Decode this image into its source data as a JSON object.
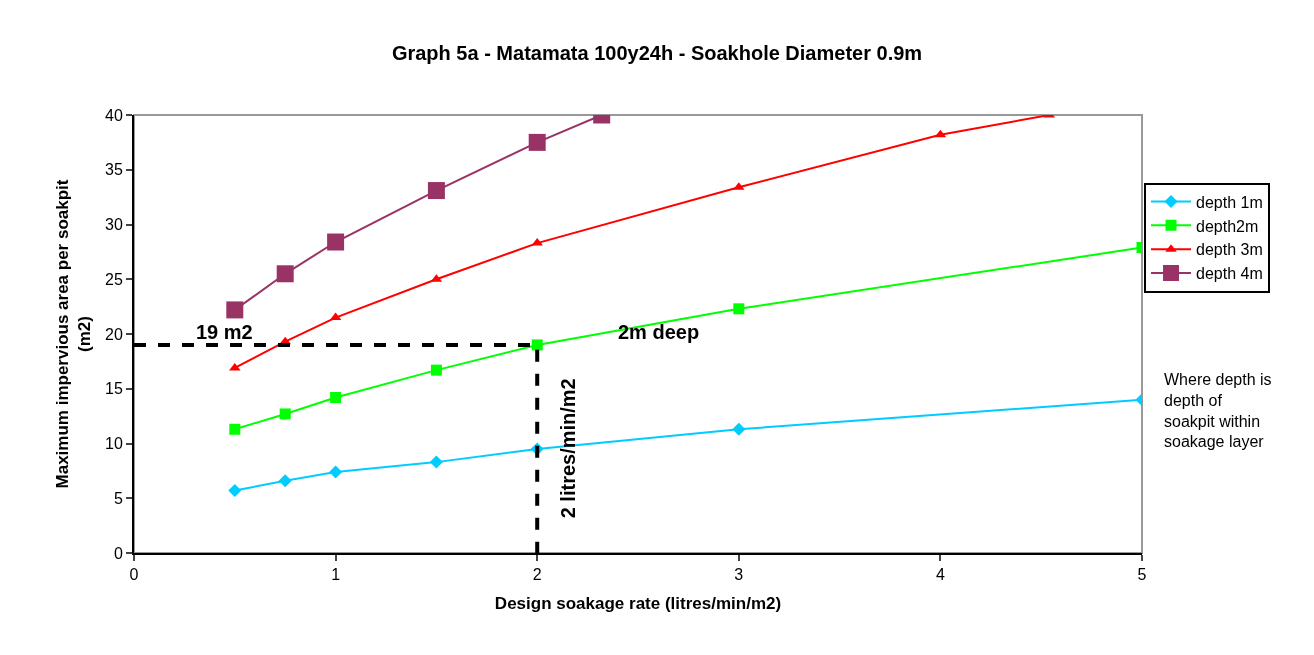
{
  "chart_data": {
    "type": "line",
    "title": "Graph 5a - Matamata 100y24h - Soakhole Diameter 0.9m",
    "xlabel": "Design soakage rate (litres/min/m2)",
    "ylabel": "Maximum impervious area per soakpit (m2)",
    "x": [
      0.5,
      0.75,
      1,
      1.5,
      2,
      3,
      5
    ],
    "series": [
      {
        "name": "depth 1m",
        "color": "#00ccff",
        "marker": "diamond",
        "values": [
          5.7,
          6.6,
          7.4,
          8.3,
          9.5,
          11.3,
          14.0
        ]
      },
      {
        "name": "depth2m",
        "color": "#00ff00",
        "marker": "square",
        "values": [
          11.3,
          12.7,
          14.2,
          16.7,
          19.0,
          22.3,
          27.9
        ]
      },
      {
        "name": "depth 3m",
        "color": "#ff0000",
        "marker": "triangle",
        "x": [
          0.5,
          0.75,
          1,
          1.5,
          2,
          3,
          4,
          4.54
        ],
        "values": [
          16.9,
          19.3,
          21.5,
          25.0,
          28.3,
          33.4,
          38.2,
          40
        ]
      },
      {
        "name": "depth 4m",
        "color": "#993366",
        "marker": "square",
        "x": [
          0.5,
          0.75,
          1,
          1.5,
          2,
          2.32
        ],
        "values": [
          22.2,
          25.5,
          28.4,
          33.1,
          37.5,
          40
        ]
      },
      {
        "color": "#000000",
        "marker": "none",
        "line_style": "dashed",
        "x": [
          0,
          2,
          2
        ],
        "values": [
          19,
          19,
          0
        ]
      }
    ],
    "xlim": [
      0,
      5
    ],
    "xticks": [
      0,
      1,
      2,
      3,
      4,
      5
    ],
    "ylim": [
      0,
      40
    ],
    "yticks": [
      0,
      5,
      10,
      15,
      20,
      25,
      30,
      35,
      40
    ],
    "grid": false,
    "legend": "right",
    "annotations": [
      {
        "text": "19 m2",
        "x": 0.45,
        "y": 19
      },
      "2m deep",
      "2 litres/min/m2",
      "Where depth is depth of soakpit within soakage layer"
    ]
  }
}
